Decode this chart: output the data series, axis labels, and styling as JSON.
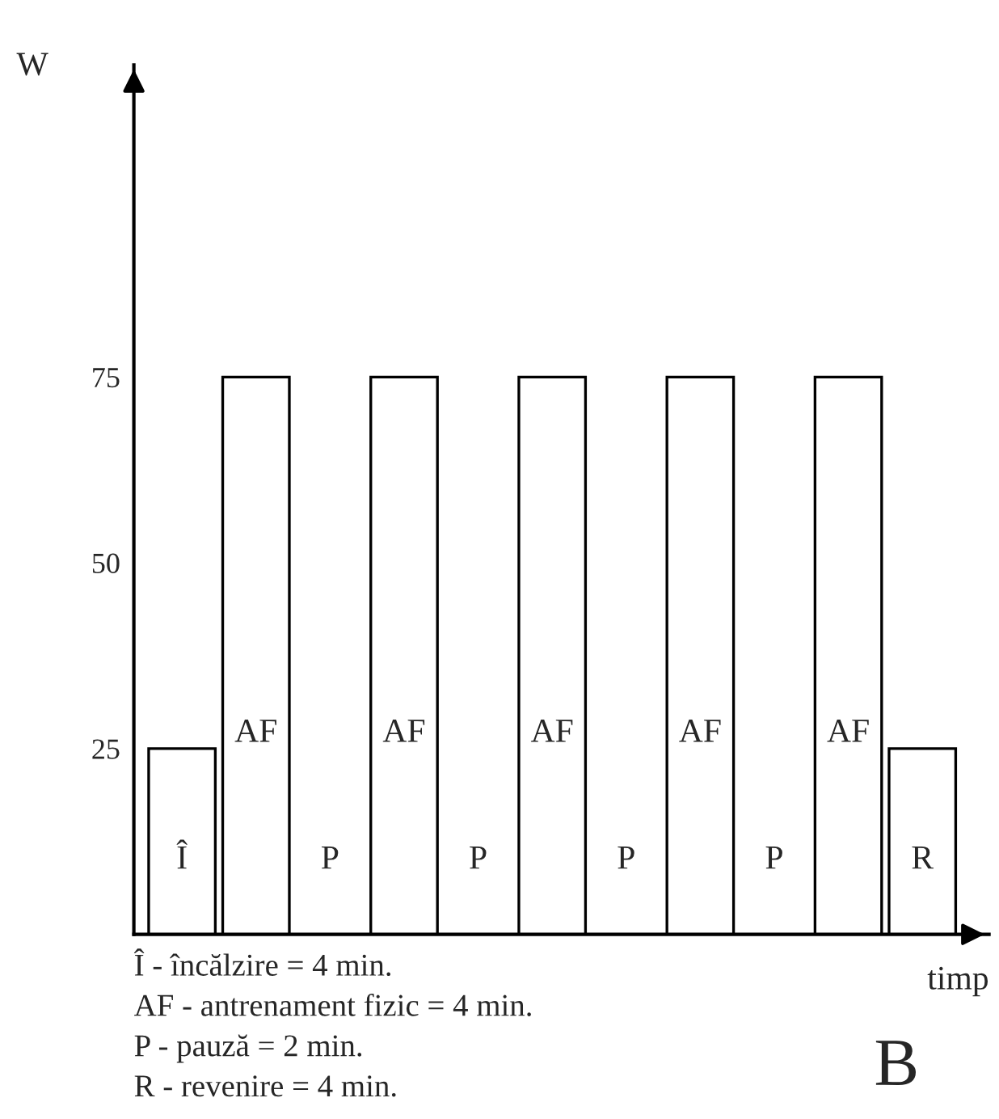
{
  "chart_data": {
    "type": "bar",
    "categories": [
      "Î",
      "AF",
      "P",
      "AF",
      "P",
      "AF",
      "P",
      "AF",
      "P",
      "AF",
      "R"
    ],
    "values": [
      25,
      75,
      0,
      75,
      0,
      75,
      0,
      75,
      0,
      75,
      25
    ],
    "color": "#ffffff",
    "ylim": [
      0,
      117
    ],
    "yticks": [
      25,
      50,
      75
    ],
    "xlabel": "timp",
    "ylabel": "W",
    "grid": false,
    "legend": false,
    "annotations": [
      "Î - încălzire = 4 min.",
      "AF - antrenament fizic = 4 min.",
      "P - pauză = 2 min.",
      "R - revenire = 4 min.",
      "B"
    ]
  }
}
